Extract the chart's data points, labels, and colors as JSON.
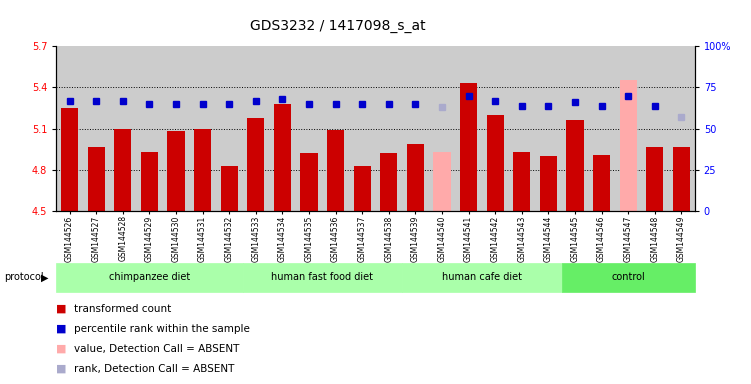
{
  "title": "GDS3232 / 1417098_s_at",
  "samples": [
    "GSM144526",
    "GSM144527",
    "GSM144528",
    "GSM144529",
    "GSM144530",
    "GSM144531",
    "GSM144532",
    "GSM144533",
    "GSM144534",
    "GSM144535",
    "GSM144536",
    "GSM144537",
    "GSM144538",
    "GSM144539",
    "GSM144540",
    "GSM144541",
    "GSM144542",
    "GSM144543",
    "GSM144544",
    "GSM144545",
    "GSM144546",
    "GSM144547",
    "GSM144548",
    "GSM144549"
  ],
  "bar_values": [
    5.25,
    4.97,
    5.1,
    4.93,
    5.08,
    5.1,
    4.83,
    5.18,
    5.28,
    4.92,
    5.09,
    4.83,
    4.92,
    4.99,
    4.93,
    5.43,
    5.2,
    4.93,
    4.9,
    5.16,
    4.91,
    5.45,
    4.97,
    4.97
  ],
  "bar_absent": [
    false,
    false,
    false,
    false,
    false,
    false,
    false,
    false,
    false,
    false,
    false,
    false,
    false,
    false,
    true,
    false,
    false,
    false,
    false,
    false,
    false,
    true,
    false,
    false
  ],
  "rank_values": [
    67,
    67,
    67,
    65,
    65,
    65,
    65,
    67,
    68,
    65,
    65,
    65,
    65,
    65,
    63,
    70,
    67,
    64,
    64,
    66,
    64,
    70,
    64,
    57
  ],
  "rank_absent": [
    false,
    false,
    false,
    false,
    false,
    false,
    false,
    false,
    false,
    false,
    false,
    false,
    false,
    false,
    true,
    false,
    false,
    false,
    false,
    false,
    false,
    false,
    false,
    true
  ],
  "groups": [
    {
      "label": "chimpanzee diet",
      "start": 0,
      "end": 7
    },
    {
      "label": "human fast food diet",
      "start": 7,
      "end": 13
    },
    {
      "label": "human cafe diet",
      "start": 13,
      "end": 19
    },
    {
      "label": "control",
      "start": 19,
      "end": 24
    }
  ],
  "group_colors": [
    "#aaffaa",
    "#aaffaa",
    "#aaffaa",
    "#66ee66"
  ],
  "ylim_left": [
    4.5,
    5.7
  ],
  "ylim_right": [
    0,
    100
  ],
  "yticks_left": [
    4.5,
    4.8,
    5.1,
    5.4,
    5.7
  ],
  "yticks_right": [
    0,
    25,
    50,
    75,
    100
  ],
  "bar_color": "#cc0000",
  "bar_absent_color": "#ffaaaa",
  "rank_color": "#0000cc",
  "rank_absent_color": "#aaaacc",
  "col_bg_color": "#cccccc",
  "plot_bg": "#ffffff",
  "title_fontsize": 10,
  "tick_fontsize": 7,
  "xtick_fontsize": 5.5,
  "legend_fontsize": 7.5
}
